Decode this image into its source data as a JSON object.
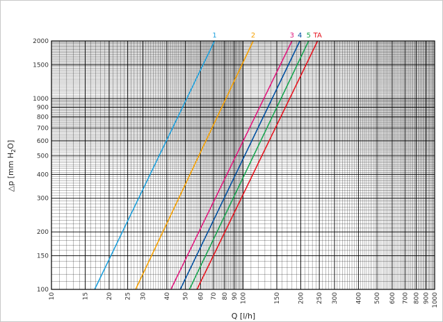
{
  "chart_data": {
    "type": "line",
    "xlabel": "Q [l/h]",
    "ylabel": "△p [mm H2O]",
    "xscale": "log",
    "yscale": "log",
    "xlim": [
      10,
      1000
    ],
    "ylim": [
      100,
      2000
    ],
    "grid": true,
    "x_ticks": [
      10,
      15,
      20,
      25,
      30,
      40,
      50,
      60,
      70,
      80,
      90,
      100,
      150,
      200,
      250,
      300,
      400,
      500,
      600,
      700,
      800,
      900,
      1000
    ],
    "y_ticks": [
      100,
      150,
      200,
      300,
      400,
      500,
      600,
      700,
      800,
      900,
      1000,
      1500,
      2000
    ],
    "series": [
      {
        "name": "1",
        "color": "#1ea0dc",
        "x": [
          16.8,
          71
        ],
        "y": [
          100,
          2000
        ]
      },
      {
        "name": "2",
        "color": "#f5a000",
        "x": [
          27.5,
          113
        ],
        "y": [
          100,
          2000
        ]
      },
      {
        "name": "3",
        "color": "#e0197d",
        "x": [
          42,
          180
        ],
        "y": [
          100,
          2000
        ]
      },
      {
        "name": "4",
        "color": "#0050a0",
        "x": [
          47,
          198
        ],
        "y": [
          100,
          2000
        ]
      },
      {
        "name": "5",
        "color": "#19a550",
        "x": [
          52.5,
          220
        ],
        "y": [
          100,
          2000
        ]
      },
      {
        "name": "TA",
        "color": "#e6141e",
        "x": [
          57.5,
          245
        ],
        "y": [
          100,
          2000
        ]
      }
    ]
  }
}
